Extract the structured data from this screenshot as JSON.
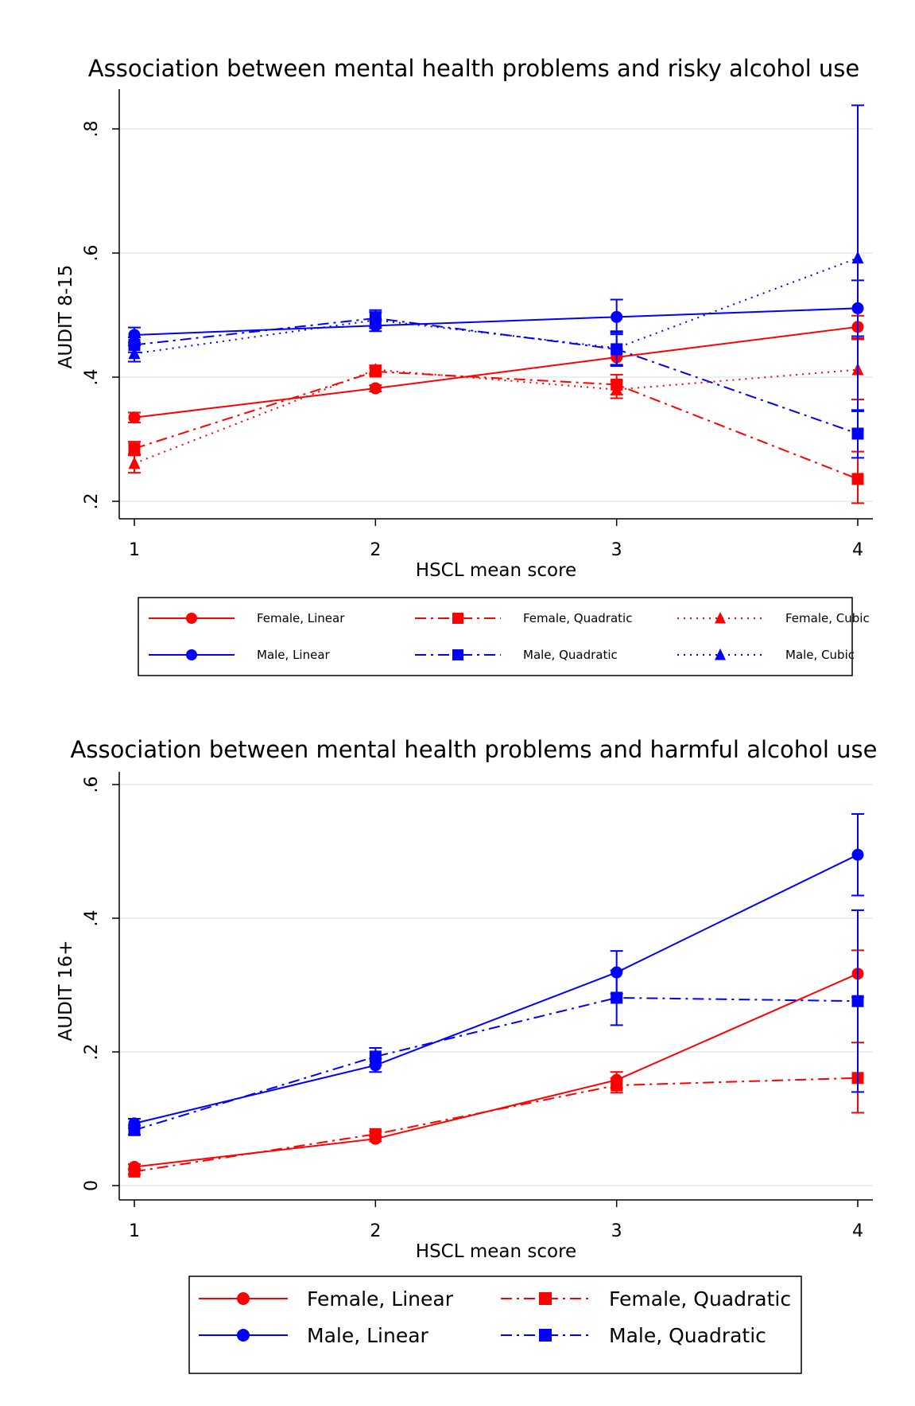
{
  "colors": {
    "female": "#ff0000",
    "male": "#0000ff",
    "grid": "#e4ecee",
    "axis": "#000000"
  },
  "chart_data": [
    {
      "type": "line",
      "title": "Association between mental health problems and risky alcohol use",
      "xlabel": "HSCL mean score",
      "ylabel": "AUDIT 8-15",
      "x": [
        1,
        2,
        3,
        4
      ],
      "xticks": [
        "1",
        "2",
        "3",
        "4"
      ],
      "yticks": [
        0.2,
        0.4,
        0.6,
        0.8
      ],
      "ytick_labels": [
        ".2",
        ".4",
        ".6",
        ".8"
      ],
      "xlim": [
        1,
        4
      ],
      "ylim": [
        0.2,
        0.8
      ],
      "grid": true,
      "legend_placement": "bottom",
      "series": [
        {
          "name": "Female, Linear",
          "color": "#ff0000",
          "dash": "solid",
          "marker": "circle",
          "values": [
            0.335,
            0.382,
            0.432,
            0.481
          ],
          "ci_low": [
            0.327,
            0.377,
            0.419,
            0.463
          ],
          "ci_high": [
            0.343,
            0.387,
            0.445,
            0.499
          ]
        },
        {
          "name": "Male, Linear",
          "color": "#0000ff",
          "dash": "solid",
          "marker": "circle",
          "values": [
            0.468,
            0.483,
            0.497,
            0.511
          ],
          "ci_low": [
            0.456,
            0.474,
            0.469,
            0.466
          ],
          "ci_high": [
            0.48,
            0.492,
            0.525,
            0.556
          ]
        },
        {
          "name": "Female, Quadratic",
          "color": "#ff0000",
          "dash": "dashdot",
          "marker": "square",
          "values": [
            0.285,
            0.409,
            0.388,
            0.236
          ],
          "ci_low": [
            0.274,
            0.403,
            0.372,
            0.197
          ],
          "ci_high": [
            0.296,
            0.415,
            0.404,
            0.28
          ]
        },
        {
          "name": "Male, Quadratic",
          "color": "#0000ff",
          "dash": "dashdot",
          "marker": "square",
          "values": [
            0.452,
            0.495,
            0.445,
            0.309
          ],
          "ci_low": [
            0.44,
            0.482,
            0.418,
            0.27
          ],
          "ci_high": [
            0.464,
            0.508,
            0.472,
            0.347
          ]
        },
        {
          "name": "Female, Cubic",
          "color": "#ff0000",
          "dash": "dotted",
          "marker": "triangle",
          "values": [
            0.261,
            0.412,
            0.38,
            0.412
          ],
          "ci_low": [
            0.246,
            0.405,
            0.366,
            0.364
          ],
          "ci_high": [
            0.276,
            0.419,
            0.394,
            0.461
          ]
        },
        {
          "name": "Male, Cubic",
          "color": "#0000ff",
          "dash": "dotted",
          "marker": "triangle",
          "values": [
            0.438,
            0.492,
            0.447,
            0.592
          ],
          "ci_low": [
            0.425,
            0.479,
            0.42,
            0.345
          ],
          "ci_high": [
            0.451,
            0.505,
            0.474,
            0.838
          ]
        }
      ]
    },
    {
      "type": "line",
      "title": "Association between mental health problems and harmful alcohol use",
      "xlabel": "HSCL mean score",
      "ylabel": "AUDIT 16+",
      "x": [
        1,
        2,
        3,
        4
      ],
      "xticks": [
        "1",
        "2",
        "3",
        "4"
      ],
      "yticks": [
        0,
        0.2,
        0.4,
        0.6
      ],
      "ytick_labels": [
        "0",
        ".2",
        ".4",
        ".6"
      ],
      "xlim": [
        1,
        4
      ],
      "ylim": [
        0,
        0.6
      ],
      "grid": true,
      "legend_placement": "bottom",
      "series": [
        {
          "name": "Female, Linear",
          "color": "#ff0000",
          "dash": "solid",
          "marker": "circle",
          "values": [
            0.028,
            0.07,
            0.158,
            0.317
          ],
          "ci_low": [
            0.024,
            0.066,
            0.146,
            0.282
          ],
          "ci_high": [
            0.032,
            0.074,
            0.17,
            0.352
          ]
        },
        {
          "name": "Male, Linear",
          "color": "#0000ff",
          "dash": "solid",
          "marker": "circle",
          "values": [
            0.093,
            0.18,
            0.319,
            0.495
          ],
          "ci_low": [
            0.086,
            0.17,
            0.287,
            0.434
          ],
          "ci_high": [
            0.1,
            0.19,
            0.351,
            0.556
          ]
        },
        {
          "name": "Female, Quadratic",
          "color": "#ff0000",
          "dash": "dashdot",
          "marker": "square",
          "values": [
            0.021,
            0.077,
            0.15,
            0.161
          ],
          "ci_low": [
            0.017,
            0.073,
            0.139,
            0.109
          ],
          "ci_high": [
            0.025,
            0.081,
            0.161,
            0.214
          ]
        },
        {
          "name": "Male, Quadratic",
          "color": "#0000ff",
          "dash": "dashdot",
          "marker": "square",
          "values": [
            0.083,
            0.193,
            0.281,
            0.276
          ],
          "ci_low": [
            0.076,
            0.18,
            0.24,
            0.14
          ],
          "ci_high": [
            0.09,
            0.206,
            0.322,
            0.412
          ]
        }
      ]
    }
  ]
}
